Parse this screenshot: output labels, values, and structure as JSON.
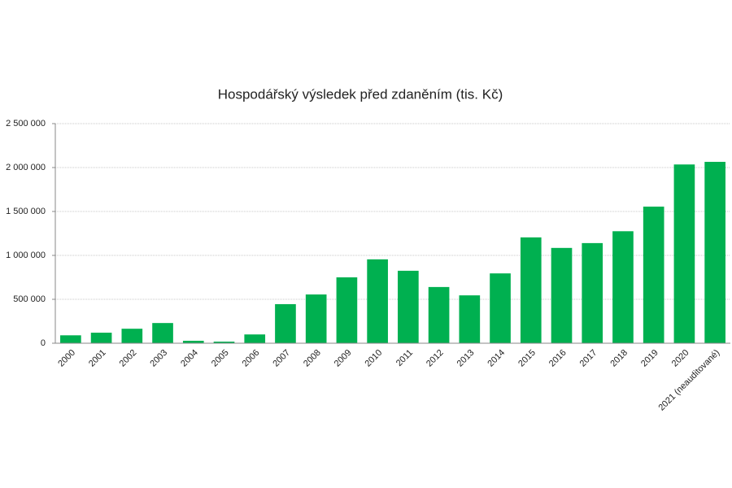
{
  "chart_data": {
    "type": "bar",
    "title": "Hospodářský výsledek před zdaněním (tis. Kč)",
    "categories": [
      "2000",
      "2001",
      "2002",
      "2003",
      "2004",
      "2005",
      "2006",
      "2007",
      "2008",
      "2009",
      "2010",
      "2011",
      "2012",
      "2013",
      "2014",
      "2015",
      "2016",
      "2017",
      "2018",
      "2019",
      "2020",
      "2021 (neauditované)"
    ],
    "values": [
      90000,
      120000,
      165000,
      230000,
      28000,
      18000,
      100000,
      445000,
      555000,
      750000,
      955000,
      825000,
      640000,
      545000,
      795000,
      1205000,
      1085000,
      1140000,
      1275000,
      1555000,
      2035000,
      2065000
    ],
    "color": "#00b050",
    "ylim": [
      0,
      2500000
    ],
    "yticks": [
      0,
      {
        "value": 500000,
        "label": "500 000"
      },
      {
        "value": 1000000,
        "label": "1 000 000"
      },
      {
        "value": 1500000,
        "label": "1 500 000"
      },
      {
        "value": 2000000,
        "label": "2 000 000"
      },
      {
        "value": 2500000,
        "label": "2 500 000"
      }
    ],
    "grid": true
  }
}
